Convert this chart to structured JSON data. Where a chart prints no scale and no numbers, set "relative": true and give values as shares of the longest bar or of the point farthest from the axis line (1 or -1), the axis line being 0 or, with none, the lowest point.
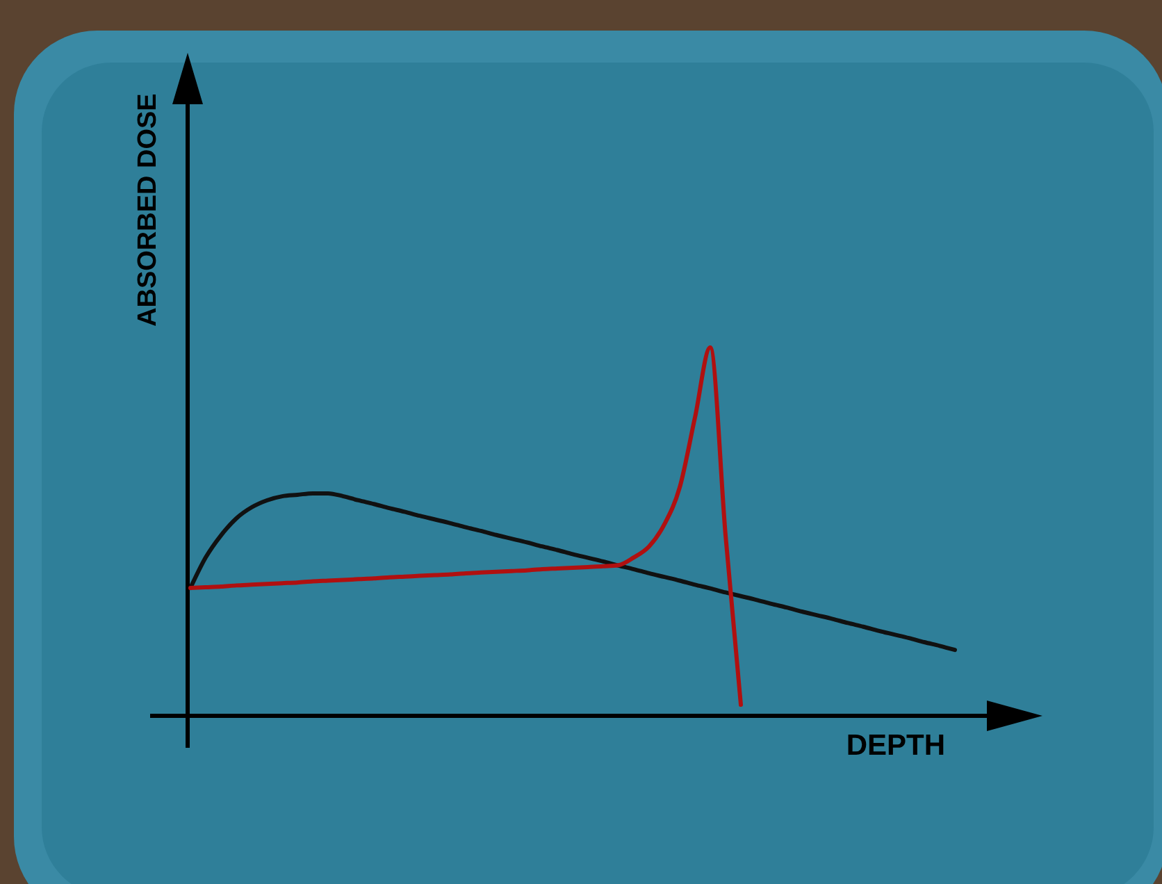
{
  "chart_data": {
    "type": "line",
    "relative": true,
    "xlabel": "DEPTH",
    "ylabel": "ABSORBED DOSE",
    "line_style": "solid",
    "categories": [
      null,
      null,
      null,
      null,
      null,
      null,
      null,
      null,
      null,
      null,
      null,
      null,
      null,
      null,
      null,
      null,
      null,
      null,
      null,
      null,
      null,
      null,
      null,
      null,
      null,
      null,
      null,
      null,
      null,
      null,
      null,
      null,
      null,
      null,
      null,
      null,
      null,
      null,
      null,
      null,
      null,
      null,
      null,
      null,
      null,
      null,
      null,
      null,
      null,
      null,
      null
    ],
    "series": [
      {
        "color": "#111111",
        "values": [
          0.347,
          0.43,
          0.49,
          0.536,
          0.566,
          0.585,
          0.596,
          0.6,
          0.604,
          0.604,
          0.596,
          0.585,
          0.575,
          0.564,
          0.554,
          0.543,
          0.533,
          0.523,
          0.512,
          0.502,
          0.491,
          0.481,
          0.471,
          0.46,
          0.45,
          0.439,
          0.429,
          0.419,
          0.408,
          0.398,
          0.387,
          0.377,
          0.367,
          0.356,
          0.346,
          0.335,
          0.325,
          0.315,
          0.304,
          0.294,
          0.283,
          0.273,
          0.263,
          0.252,
          0.242,
          0.231,
          0.221,
          0.211,
          0.2,
          0.19,
          0.179
        ]
      },
      {
        "color": "#b01010",
        "values": [
          0.347,
          0.349,
          0.351,
          0.354,
          0.356,
          0.358,
          0.36,
          0.362,
          0.365,
          0.367,
          0.369,
          0.371,
          0.373,
          0.376,
          0.378,
          0.38,
          0.382,
          0.384,
          0.387,
          0.389,
          0.391,
          0.393,
          0.395,
          0.398,
          0.4,
          0.402,
          0.404,
          0.406,
          0.409,
          0.43,
          0.46,
          0.52,
          0.62,
          0.81,
          1.0,
          0.49,
          0.03,
          null,
          null,
          null,
          null,
          null,
          null,
          null,
          null,
          null,
          null,
          null,
          null,
          null,
          null
        ]
      }
    ]
  }
}
